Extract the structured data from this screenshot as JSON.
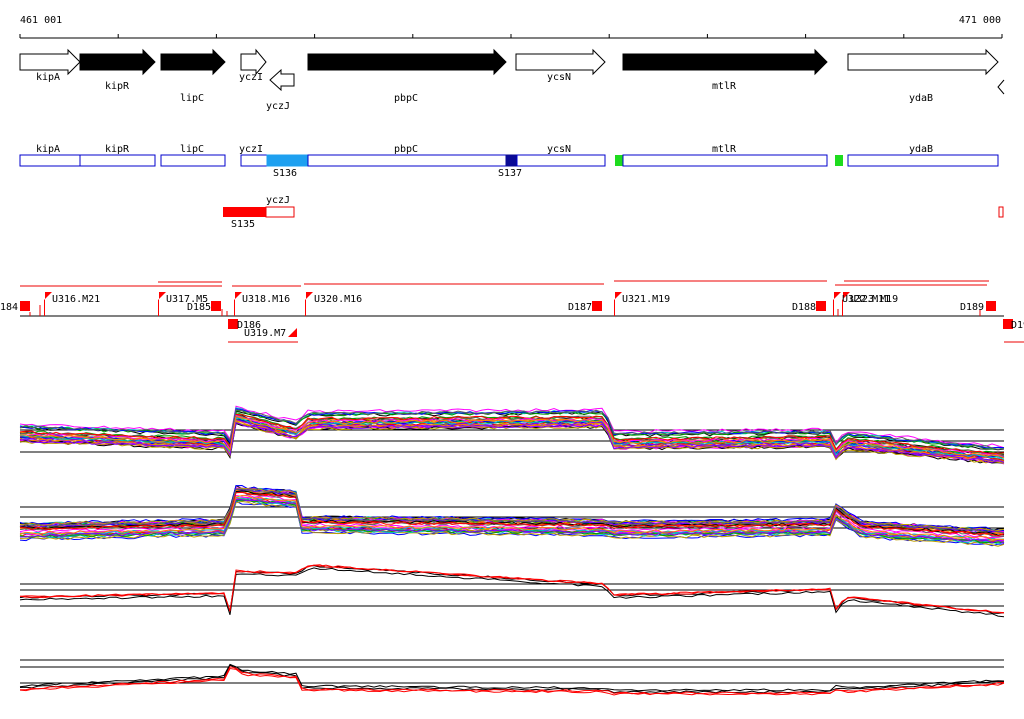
{
  "coordinates": {
    "start": "461 001",
    "end": "471 000"
  },
  "genes_track": [
    {
      "name": "kipA",
      "strand": "+",
      "fill": "white"
    },
    {
      "name": "kipR",
      "strand": "+",
      "fill": "black"
    },
    {
      "name": "lipC",
      "strand": "+",
      "fill": "black"
    },
    {
      "name": "yczI",
      "strand": "+",
      "fill": "white"
    },
    {
      "name": "yczJ",
      "strand": "-",
      "fill": "white"
    },
    {
      "name": "pbpC",
      "strand": "+",
      "fill": "black"
    },
    {
      "name": "ycsN",
      "strand": "+",
      "fill": "white"
    },
    {
      "name": "mtlR",
      "strand": "+",
      "fill": "black"
    },
    {
      "name": "ydaB",
      "strand": "+",
      "fill": "white"
    }
  ],
  "operon_track": {
    "genes": [
      "kipA",
      "kipR",
      "lipC",
      "yczI",
      "pbpC",
      "ycsN",
      "mtlR",
      "ydaB"
    ],
    "reverse_gene": "yczJ",
    "segments": [
      {
        "label": "S136",
        "color": "#1ea0f0"
      },
      {
        "label": "S137",
        "color": "#0a0a96"
      },
      {
        "label": "S135",
        "color": "#ff0000"
      }
    ],
    "green_color": "#1edc1e",
    "box_color": "#0000cc"
  },
  "tiling_track": {
    "labels": [
      "184",
      "U316.M21",
      "U317.M5",
      "D185",
      "D186",
      "U318.M16",
      "U319.M7",
      "U320.M16",
      "D187",
      "U321.M19",
      "D188",
      "U322.M11",
      "U323.M19",
      "D189",
      "D19"
    ],
    "color": "#ff0000"
  },
  "expression_panels": [
    {
      "name": "all-conditions-upper",
      "series_colors": [
        "#000000",
        "#ff0000",
        "#00a000",
        "#0000ff",
        "#ff00ff",
        "#00c0c0",
        "#c0a000",
        "#8000ff",
        "#ff8000",
        "#606060"
      ]
    },
    {
      "name": "all-conditions-lower",
      "series_colors": [
        "#000000",
        "#ff0000",
        "#00a000",
        "#0000ff",
        "#ff00ff",
        "#00c0c0",
        "#c0a000",
        "#8000ff",
        "#ff8000",
        "#606060"
      ]
    },
    {
      "name": "selected-upper",
      "series_colors": [
        "#000000",
        "#ff0000"
      ]
    },
    {
      "name": "selected-lower",
      "series_colors": [
        "#000000",
        "#ff0000"
      ]
    }
  ]
}
